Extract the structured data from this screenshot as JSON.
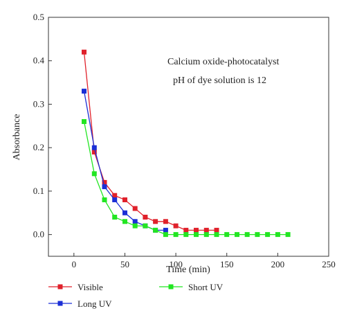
{
  "chart_data": {
    "type": "line",
    "xlabel": "Time (min)",
    "ylabel": "Absorbance",
    "xlim": [
      -25,
      250
    ],
    "ylim": [
      -0.05,
      0.5
    ],
    "xticks": [
      0,
      50,
      100,
      150,
      200,
      250
    ],
    "yticks": [
      0.0,
      0.1,
      0.2,
      0.3,
      0.4,
      0.5
    ],
    "annotations": [
      "Calcium oxide-photocatalyst",
      "pH of dye solution is 12"
    ],
    "legend_position": "bottom",
    "series": [
      {
        "name": "Visible",
        "color": "#e0212b",
        "x": [
          10,
          20,
          30,
          40,
          50,
          60,
          70,
          80,
          90,
          100,
          110,
          120,
          130,
          140
        ],
        "y": [
          0.42,
          0.19,
          0.12,
          0.09,
          0.08,
          0.06,
          0.04,
          0.03,
          0.03,
          0.02,
          0.01,
          0.01,
          0.01,
          0.01
        ]
      },
      {
        "name": "Long UV",
        "color": "#1b2fd6",
        "x": [
          10,
          20,
          30,
          40,
          50,
          60,
          70,
          80,
          90
        ],
        "y": [
          0.33,
          0.2,
          0.11,
          0.08,
          0.05,
          0.03,
          0.02,
          0.01,
          0.01
        ]
      },
      {
        "name": "Short UV",
        "color": "#22e622",
        "x": [
          10,
          20,
          30,
          40,
          50,
          60,
          70,
          80,
          90,
          100,
          110,
          120,
          130,
          140,
          150,
          160,
          170,
          180,
          190,
          200,
          210
        ],
        "y": [
          0.26,
          0.14,
          0.08,
          0.04,
          0.03,
          0.02,
          0.02,
          0.01,
          0.0,
          0.0,
          0.0,
          0.0,
          0.0,
          0.0,
          0.0,
          0.0,
          0.0,
          0.0,
          0.0,
          0.0,
          0.0
        ]
      }
    ]
  }
}
